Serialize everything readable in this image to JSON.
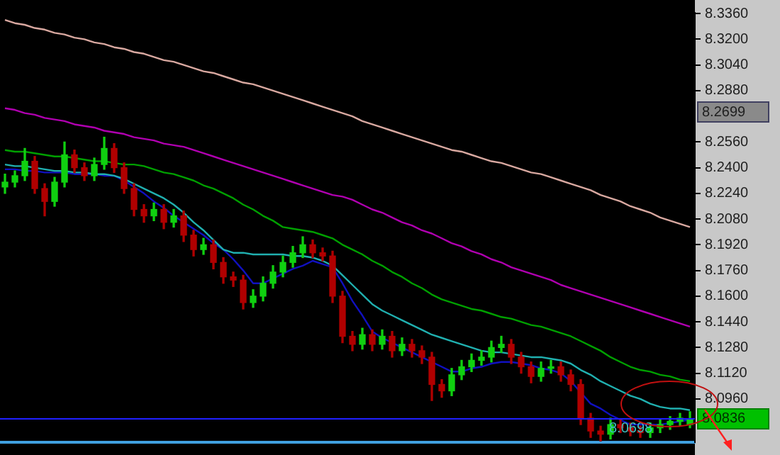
{
  "chart_data": {
    "type": "candlestick",
    "categories": [
      null,
      null,
      null,
      null,
      null,
      null,
      null,
      null,
      null,
      null,
      null,
      null,
      null,
      null,
      null,
      null,
      null,
      null,
      null,
      null,
      null,
      null,
      null,
      null,
      null,
      null,
      null,
      null,
      null,
      null,
      null,
      null,
      null,
      null,
      null,
      null,
      null,
      null,
      null,
      null,
      null,
      null,
      null,
      null,
      null,
      null,
      null,
      null,
      null,
      null,
      null,
      null,
      null,
      null,
      null,
      null,
      null,
      null,
      null,
      null,
      null,
      null,
      null,
      null,
      null,
      null,
      null,
      null,
      null,
      null
    ],
    "ohlc": [
      [
        8.228,
        8.236,
        8.224,
        8.231
      ],
      [
        8.231,
        8.238,
        8.228,
        8.235
      ],
      [
        8.235,
        8.252,
        8.232,
        8.244
      ],
      [
        8.244,
        8.247,
        8.224,
        8.227
      ],
      [
        8.227,
        8.23,
        8.21,
        8.219
      ],
      [
        8.219,
        8.234,
        8.216,
        8.231
      ],
      [
        8.231,
        8.256,
        8.228,
        8.248
      ],
      [
        8.248,
        8.251,
        8.237,
        8.24
      ],
      [
        8.24,
        8.243,
        8.232,
        8.235
      ],
      [
        8.235,
        8.246,
        8.232,
        8.242
      ],
      [
        8.242,
        8.259,
        8.239,
        8.252
      ],
      [
        8.252,
        8.255,
        8.237,
        8.24
      ],
      [
        8.24,
        8.243,
        8.224,
        8.227
      ],
      [
        8.227,
        8.23,
        8.21,
        8.214
      ],
      [
        8.214,
        8.217,
        8.206,
        8.21
      ],
      [
        8.21,
        8.218,
        8.207,
        8.214
      ],
      [
        8.214,
        8.217,
        8.202,
        8.206
      ],
      [
        8.206,
        8.214,
        8.203,
        8.21
      ],
      [
        8.21,
        8.213,
        8.194,
        8.198
      ],
      [
        8.198,
        8.201,
        8.185,
        8.189
      ],
      [
        8.189,
        8.196,
        8.186,
        8.192
      ],
      [
        8.192,
        8.195,
        8.177,
        8.181
      ],
      [
        8.181,
        8.184,
        8.168,
        8.172
      ],
      [
        8.172,
        8.175,
        8.166,
        8.17
      ],
      [
        8.17,
        8.173,
        8.152,
        8.156
      ],
      [
        8.156,
        8.164,
        8.153,
        8.16
      ],
      [
        8.16,
        8.172,
        8.157,
        8.168
      ],
      [
        8.168,
        8.179,
        8.165,
        8.175
      ],
      [
        8.175,
        8.185,
        8.172,
        8.181
      ],
      [
        8.181,
        8.191,
        8.178,
        8.187
      ],
      [
        8.187,
        8.197,
        8.184,
        8.192
      ],
      [
        8.192,
        8.195,
        8.184,
        8.187
      ],
      [
        8.187,
        8.19,
        8.182,
        8.185
      ],
      [
        8.185,
        8.188,
        8.156,
        8.16
      ],
      [
        8.16,
        8.163,
        8.131,
        8.135
      ],
      [
        8.135,
        8.138,
        8.126,
        8.13
      ],
      [
        8.13,
        8.14,
        8.127,
        8.136
      ],
      [
        8.136,
        8.139,
        8.126,
        8.13
      ],
      [
        8.13,
        8.139,
        8.127,
        8.135
      ],
      [
        8.135,
        8.138,
        8.122,
        8.126
      ],
      [
        8.126,
        8.134,
        8.123,
        8.13
      ],
      [
        8.13,
        8.133,
        8.122,
        8.126
      ],
      [
        8.126,
        8.129,
        8.118,
        8.122
      ],
      [
        8.122,
        8.125,
        8.095,
        8.105
      ],
      [
        8.105,
        8.108,
        8.097,
        8.101
      ],
      [
        8.101,
        8.115,
        8.098,
        8.111
      ],
      [
        8.111,
        8.12,
        8.108,
        8.116
      ],
      [
        8.116,
        8.124,
        8.113,
        8.12
      ],
      [
        8.12,
        8.126,
        8.117,
        8.122
      ],
      [
        8.122,
        8.132,
        8.119,
        8.128
      ],
      [
        8.128,
        8.135,
        8.125,
        8.13
      ],
      [
        8.13,
        8.133,
        8.118,
        8.122
      ],
      [
        8.122,
        8.125,
        8.112,
        8.116
      ],
      [
        8.116,
        8.119,
        8.106,
        8.11
      ],
      [
        8.11,
        8.119,
        8.107,
        8.115
      ],
      [
        8.115,
        8.12,
        8.112,
        8.116
      ],
      [
        8.116,
        8.119,
        8.107,
        8.111
      ],
      [
        8.111,
        8.114,
        8.101,
        8.105
      ],
      [
        8.105,
        8.108,
        8.08,
        8.084
      ],
      [
        8.084,
        8.087,
        8.072,
        8.076
      ],
      [
        8.076,
        8.079,
        8.0698,
        8.074
      ],
      [
        8.074,
        8.084,
        8.071,
        8.08
      ],
      [
        8.08,
        8.083,
        8.075,
        8.078
      ],
      [
        8.078,
        8.081,
        8.073,
        8.076
      ],
      [
        8.076,
        8.079,
        8.072,
        8.075
      ],
      [
        8.075,
        8.081,
        8.072,
        8.078
      ],
      [
        8.078,
        8.083,
        8.075,
        8.08
      ],
      [
        8.08,
        8.085,
        8.077,
        8.082
      ],
      [
        8.082,
        8.087,
        8.079,
        8.084
      ],
      [
        8.08,
        8.088,
        8.078,
        8.0836
      ]
    ],
    "series": [
      {
        "type": "line",
        "color": "#d8a8a0",
        "values": [
          8.332,
          8.33,
          8.329,
          8.327,
          8.326,
          8.324,
          8.323,
          8.321,
          8.32,
          8.318,
          8.317,
          8.315,
          8.314,
          8.312,
          8.311,
          8.309,
          8.307,
          8.306,
          8.304,
          8.302,
          8.3,
          8.299,
          8.297,
          8.295,
          8.293,
          8.292,
          8.29,
          8.288,
          8.286,
          8.284,
          8.282,
          8.28,
          8.278,
          8.276,
          8.274,
          8.272,
          8.269,
          8.267,
          8.265,
          8.263,
          8.261,
          8.259,
          8.257,
          8.255,
          8.253,
          8.251,
          8.25,
          8.248,
          8.246,
          8.244,
          8.243,
          8.241,
          8.239,
          8.237,
          8.236,
          8.234,
          8.232,
          8.23,
          8.228,
          8.226,
          8.223,
          8.221,
          8.219,
          8.216,
          8.214,
          8.212,
          8.209,
          8.207,
          8.205,
          8.203
        ]
      },
      {
        "type": "line",
        "color": "#b000b0",
        "values": [
          8.277,
          8.276,
          8.274,
          8.273,
          8.271,
          8.27,
          8.269,
          8.267,
          8.266,
          8.265,
          8.263,
          8.262,
          8.261,
          8.259,
          8.258,
          8.257,
          8.255,
          8.254,
          8.253,
          8.251,
          8.249,
          8.247,
          8.245,
          8.243,
          8.241,
          8.239,
          8.237,
          8.235,
          8.233,
          8.231,
          8.229,
          8.227,
          8.225,
          8.223,
          8.222,
          8.22,
          8.217,
          8.214,
          8.212,
          8.209,
          8.206,
          8.204,
          8.201,
          8.199,
          8.196,
          8.193,
          8.191,
          8.188,
          8.186,
          8.183,
          8.181,
          8.178,
          8.176,
          8.174,
          8.172,
          8.17,
          8.167,
          8.165,
          8.163,
          8.161,
          8.159,
          8.157,
          8.155,
          8.153,
          8.151,
          8.149,
          8.147,
          8.145,
          8.143,
          8.141
        ]
      },
      {
        "type": "line",
        "color": "#00a000",
        "values": [
          8.251,
          8.25,
          8.25,
          8.249,
          8.248,
          8.247,
          8.247,
          8.246,
          8.245,
          8.244,
          8.244,
          8.243,
          8.242,
          8.242,
          8.241,
          8.239,
          8.237,
          8.236,
          8.234,
          8.232,
          8.229,
          8.227,
          8.224,
          8.221,
          8.217,
          8.214,
          8.21,
          8.207,
          8.203,
          8.202,
          8.201,
          8.2,
          8.198,
          8.196,
          8.192,
          8.189,
          8.186,
          8.182,
          8.179,
          8.175,
          8.172,
          8.168,
          8.165,
          8.161,
          8.158,
          8.156,
          8.154,
          8.152,
          8.151,
          8.149,
          8.147,
          8.146,
          8.144,
          8.142,
          8.141,
          8.139,
          8.137,
          8.135,
          8.132,
          8.129,
          8.126,
          8.122,
          8.119,
          8.116,
          8.114,
          8.113,
          8.111,
          8.11,
          8.108,
          8.107
        ]
      },
      {
        "type": "line",
        "color": "#20b0b0",
        "values": [
          8.242,
          8.241,
          8.241,
          8.24,
          8.239,
          8.238,
          8.238,
          8.237,
          8.237,
          8.236,
          8.236,
          8.235,
          8.233,
          8.23,
          8.227,
          8.224,
          8.221,
          8.217,
          8.212,
          8.206,
          8.201,
          8.195,
          8.189,
          8.187,
          8.187,
          8.186,
          8.186,
          8.186,
          8.186,
          8.185,
          8.185,
          8.184,
          8.182,
          8.179,
          8.173,
          8.167,
          8.161,
          8.155,
          8.151,
          8.148,
          8.145,
          8.142,
          8.139,
          8.136,
          8.134,
          8.132,
          8.13,
          8.128,
          8.126,
          8.125,
          8.125,
          8.124,
          8.123,
          8.122,
          8.122,
          8.121,
          8.12,
          8.118,
          8.114,
          8.111,
          8.107,
          8.104,
          8.101,
          8.098,
          8.096,
          8.093,
          8.091,
          8.09,
          8.09,
          8.089
        ]
      },
      {
        "type": "line",
        "color": "#1010c0",
        "values": [
          8.239,
          8.239,
          8.238,
          8.238,
          8.237,
          8.237,
          8.237,
          8.236,
          8.236,
          8.236,
          8.235,
          8.235,
          8.232,
          8.228,
          8.224,
          8.219,
          8.215,
          8.21,
          8.206,
          8.202,
          8.198,
          8.193,
          8.189,
          8.183,
          8.176,
          8.168,
          8.168,
          8.171,
          8.174,
          8.177,
          8.179,
          8.182,
          8.18,
          8.178,
          8.168,
          8.157,
          8.148,
          8.138,
          8.134,
          8.131,
          8.128,
          8.125,
          8.122,
          8.119,
          8.116,
          8.113,
          8.113,
          8.115,
          8.116,
          8.118,
          8.119,
          8.119,
          8.118,
          8.117,
          8.115,
          8.114,
          8.112,
          8.107,
          8.1,
          8.093,
          8.09,
          8.086,
          8.083,
          8.08,
          8.08,
          8.08,
          8.08,
          8.081,
          8.082,
          8.083
        ]
      }
    ],
    "ylim": [
      8.069,
      8.3365
    ],
    "yticks": [
      {
        "value": 8.096,
        "label": "8.0960"
      },
      {
        "value": 8.112,
        "label": "8.1120"
      },
      {
        "value": 8.128,
        "label": "8.1280"
      },
      {
        "value": 8.144,
        "label": "8.1440"
      },
      {
        "value": 8.16,
        "label": "8.1600"
      },
      {
        "value": 8.176,
        "label": "8.1760"
      },
      {
        "value": 8.192,
        "label": "8.1920"
      },
      {
        "value": 8.208,
        "label": "8.2080"
      },
      {
        "value": 8.224,
        "label": "8.2240"
      },
      {
        "value": 8.24,
        "label": "8.2400"
      },
      {
        "value": 8.256,
        "label": "8.2560"
      },
      {
        "value": 8.288,
        "label": "8.2880"
      },
      {
        "value": 8.304,
        "label": "8.3040"
      },
      {
        "value": 8.32,
        "label": "8.3200"
      },
      {
        "value": 8.336,
        "label": "8.3360"
      }
    ],
    "tick_labels": "y",
    "ref_lines": [
      {
        "axis": "y",
        "value": 8.0836,
        "label": "8.0836",
        "color": "#2020ff"
      }
    ],
    "annotations": [
      "8.2699",
      {
        "text": "8.0698",
        "y": 8.0698
      }
    ]
  }
}
